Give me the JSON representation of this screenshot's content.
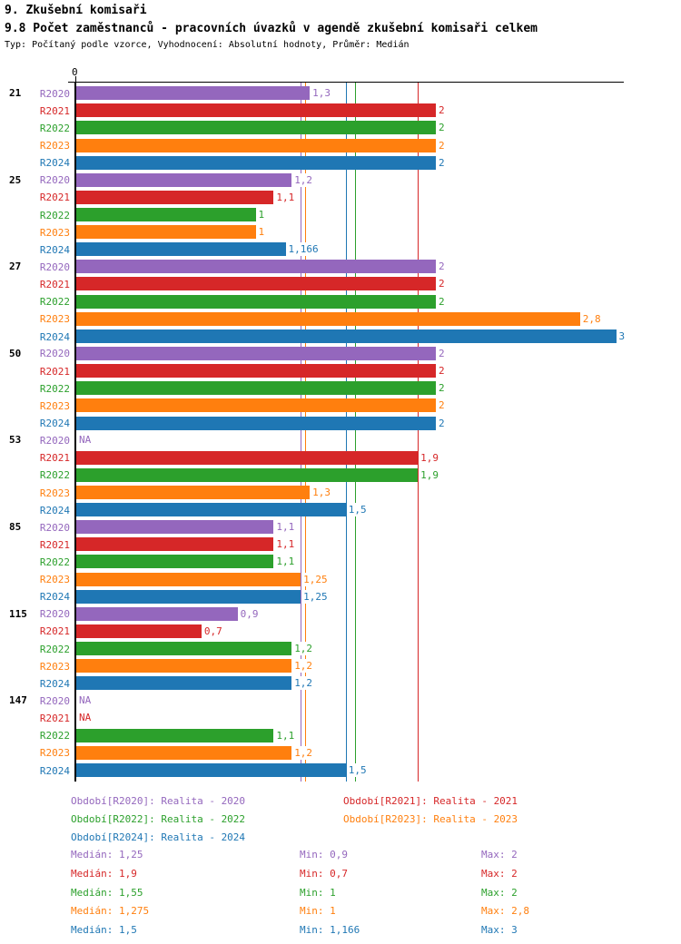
{
  "header": {
    "section_title": "9. Zkušební komisaři",
    "title": "9.8 Počet zaměstnanců - pracovních úvazků v agendě zkušební komisaři celkem",
    "meta": "Typ: Počítaný podle vzorce, Vyhodnocení: Absolutní hodnoty, Průměr: Medián"
  },
  "chart_data": {
    "type": "bar",
    "orientation": "horizontal",
    "title": "9.8 Počet zaměstnanců - pracovních úvazků v agendě zkušební komisaři celkem",
    "xlabel": "",
    "ylabel": "",
    "xlim": [
      0,
      3.04
    ],
    "origin_tick_label": "0",
    "na_label": "NA",
    "grid": "median-lines-per-series",
    "legend_position": "bottom",
    "series": [
      {
        "key": "R2020",
        "legend": "Období[R2020]: Realita - 2020",
        "color": "#9467bd",
        "median": 1.25,
        "median_display": "1,25",
        "min_display": "0,9",
        "max_display": "2"
      },
      {
        "key": "R2021",
        "legend": "Období[R2021]: Realita - 2021",
        "color": "#d62728",
        "median": 1.9,
        "median_display": "1,9",
        "min_display": "0,7",
        "max_display": "2"
      },
      {
        "key": "R2022",
        "legend": "Období[R2022]: Realita - 2022",
        "color": "#2ca02c",
        "median": 1.55,
        "median_display": "1,55",
        "min_display": "1",
        "max_display": "2"
      },
      {
        "key": "R2023",
        "legend": "Období[R2023]: Realita - 2023",
        "color": "#ff7f0e",
        "median": 1.275,
        "median_display": "1,275",
        "min_display": "1",
        "max_display": "2,8"
      },
      {
        "key": "R2024",
        "legend": "Období[R2024]: Realita - 2024",
        "color": "#1f77b4",
        "median": 1.5,
        "median_display": "1,5",
        "min_display": "1,166",
        "max_display": "3"
      }
    ],
    "groups": [
      {
        "label": "21",
        "values": [
          1.3,
          2,
          2,
          2,
          2
        ],
        "display": [
          "1,3",
          "2",
          "2",
          "2",
          "2"
        ]
      },
      {
        "label": "25",
        "values": [
          1.2,
          1.1,
          1,
          1,
          1.166
        ],
        "display": [
          "1,2",
          "1,1",
          "1",
          "1",
          "1,166"
        ]
      },
      {
        "label": "27",
        "values": [
          2,
          2,
          2,
          2.8,
          3
        ],
        "display": [
          "2",
          "2",
          "2",
          "2,8",
          "3"
        ]
      },
      {
        "label": "50",
        "values": [
          2,
          2,
          2,
          2,
          2
        ],
        "display": [
          "2",
          "2",
          "2",
          "2",
          "2"
        ]
      },
      {
        "label": "53",
        "values": [
          null,
          1.9,
          1.9,
          1.3,
          1.5
        ],
        "display": [
          "NA",
          "1,9",
          "1,9",
          "1,3",
          "1,5"
        ]
      },
      {
        "label": "85",
        "values": [
          1.1,
          1.1,
          1.1,
          1.25,
          1.25
        ],
        "display": [
          "1,1",
          "1,1",
          "1,1",
          "1,25",
          "1,25"
        ]
      },
      {
        "label": "115",
        "values": [
          0.9,
          0.7,
          1.2,
          1.2,
          1.2
        ],
        "display": [
          "0,9",
          "0,7",
          "1,2",
          "1,2",
          "1,2"
        ]
      },
      {
        "label": "147",
        "values": [
          null,
          null,
          1.1,
          1.2,
          1.5
        ],
        "display": [
          "NA",
          "NA",
          "1,1",
          "1,2",
          "1,5"
        ]
      }
    ],
    "stats_labels": {
      "median": "Medián",
      "min": "Min",
      "max": "Max"
    }
  }
}
